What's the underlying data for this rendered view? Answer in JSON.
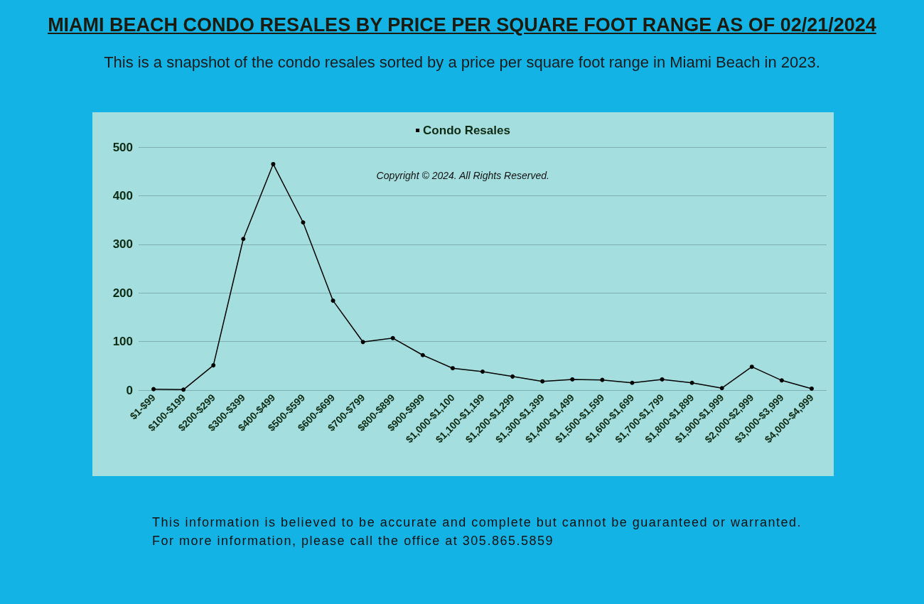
{
  "chart_data": {
    "type": "line",
    "title": "MIAMI BEACH CONDO RESALES BY PRICE PER SQUARE FOOT RANGE AS OF 02/21/2024",
    "subtitle": "This is a snapshot of the condo resales sorted by a price per square foot range in Miami Beach in 2023.",
    "categories": [
      "$1-$99",
      "$100-$199",
      "$200-$299",
      "$300-$399",
      "$400-$499",
      "$500-$599",
      "$600-$699",
      "$700-$799",
      "$800-$899",
      "$900-$999",
      "$1,000-$1,100",
      "$1,100-$1,199",
      "$1,200-$1,299",
      "$1,300-$1,399",
      "$1,400-$1,499",
      "$1,500-$1,599",
      "$1,600-$1,699",
      "$1,700-$1,799",
      "$1,800-$1,899",
      "$1,900-$1,999",
      "$2,000-$2,999",
      "$3,000-$3,999",
      "$4,000-$4,999"
    ],
    "series": [
      {
        "name": "Condo Resales",
        "color": "#000000",
        "values": [
          2,
          1,
          51,
          311,
          465,
          345,
          184,
          99,
          107,
          72,
          45,
          38,
          28,
          18,
          22,
          21,
          15,
          22,
          15,
          4,
          48,
          20,
          3
        ]
      }
    ],
    "ylim": [
      0,
      500
    ],
    "yticks": [
      0,
      100,
      200,
      300,
      400,
      500
    ],
    "grid": "y",
    "legend": "top",
    "marker": "circle",
    "line_style": "solid",
    "annotations": [
      "Copyright © 2024. All Rights Reserved.",
      "This information is believed to be accurate and complete but cannot be guaranteed or warranted. For more information, please call the office at 305.865.5859"
    ]
  }
}
